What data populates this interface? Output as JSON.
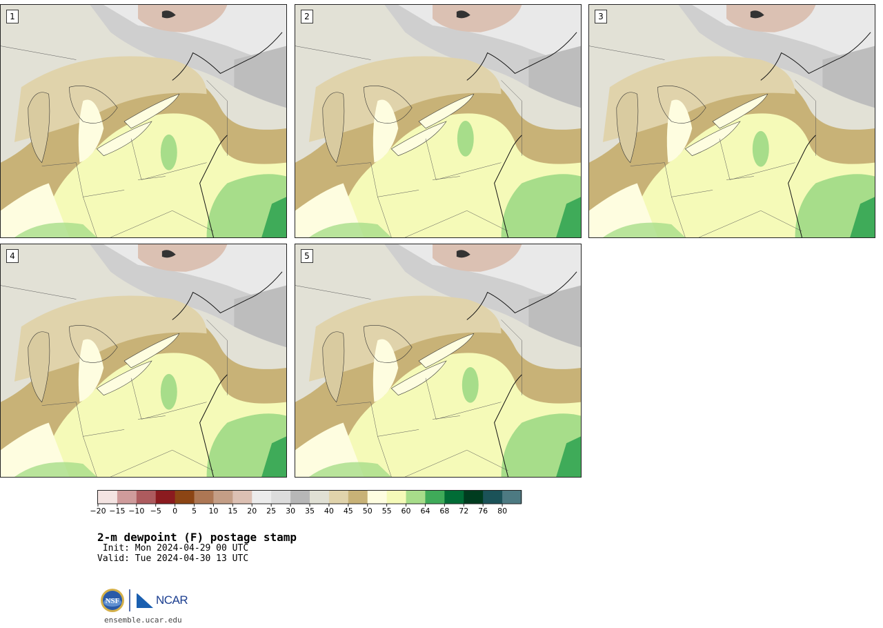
{
  "panels": [
    {
      "label": "1"
    },
    {
      "label": "2"
    },
    {
      "label": "3"
    },
    {
      "label": "4"
    },
    {
      "label": "5"
    }
  ],
  "colorbar": {
    "ticks": [
      "−20",
      "−15",
      "−10",
      "−5",
      "0",
      "5",
      "10",
      "15",
      "20",
      "25",
      "30",
      "35",
      "40",
      "45",
      "50",
      "55",
      "60",
      "64",
      "68",
      "72",
      "76",
      "80"
    ],
    "colors": [
      "#f4e4e2",
      "#cf9b9b",
      "#ad5b5e",
      "#8b1b1f",
      "#8c4514",
      "#ad7754",
      "#c49e86",
      "#dcc0b3",
      "#ececec",
      "#dcdcdc",
      "#b7b7b7",
      "#e0e0d4",
      "#e0d3ab",
      "#c8b277",
      "#fefde0",
      "#f5fab8",
      "#a7dd8a",
      "#3fab59",
      "#016c36",
      "#003c1f",
      "#1b5258",
      "#4d7a82"
    ]
  },
  "title": "2-m dewpoint (F) postage stamp",
  "init": " Init: Mon 2024-04-29 00 UTC",
  "valid": "Valid: Tue 2024-04-30 13 UTC",
  "logo": {
    "nsf": "NSF",
    "ncar": "NCAR"
  },
  "url": "ensemble.ucar.edu"
}
